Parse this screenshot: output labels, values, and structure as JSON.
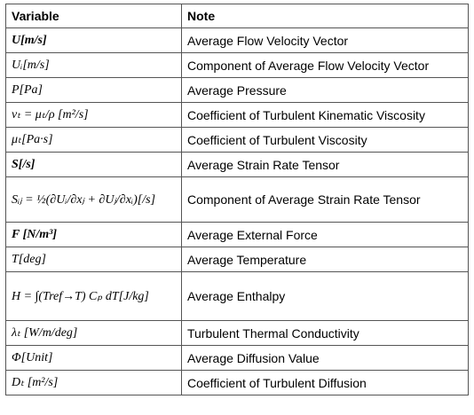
{
  "table": {
    "header": [
      "Variable",
      "Note"
    ],
    "rows": [
      [
        "U[m/s]",
        "Average Flow Velocity Vector"
      ],
      [
        "Uᵢ[m/s]",
        "Component of Average Flow Velocity Vector"
      ],
      [
        "P[Pa]",
        "Average Pressure"
      ],
      [
        "νₜ = μₜ/ρ [m²/s]",
        "Coefficient of Turbulent  Kinematic Viscosity"
      ],
      [
        "μₜ[Pa·s]",
        "Coefficient of Turbulent  Viscosity"
      ],
      [
        "S[/s]",
        "Average Strain Rate Tensor"
      ],
      [
        "Sᵢⱼ = ½(∂Uᵢ/∂xⱼ + ∂Uⱼ/∂xᵢ)[/s]",
        "Component of Average Strain Rate Tensor"
      ],
      [
        "F [N/m³]",
        "Average External Force"
      ],
      [
        "T[deg]",
        "Average Temperature"
      ],
      [
        "H = ∫(Tref→T) Cₚ dT[J/kg]",
        "Average Enthalpy"
      ],
      [
        "λₜ [W/m/deg]",
        "Turbulent  Thermal Conductivity"
      ],
      [
        "Φ[Unit]",
        "Average Diffusion Value"
      ],
      [
        "Dₜ [m²/s]",
        "Coefficient of Turbulent  Diffusion"
      ]
    ]
  }
}
